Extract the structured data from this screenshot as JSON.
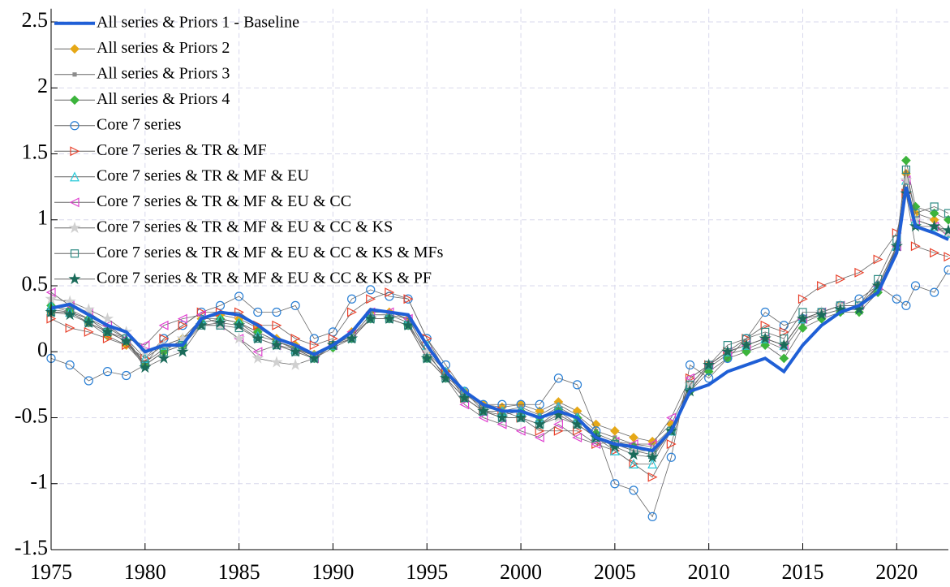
{
  "chart_data": {
    "type": "line",
    "x": [
      1975,
      1976,
      1977,
      1978,
      1979,
      1980,
      1981,
      1982,
      1983,
      1984,
      1985,
      1986,
      1987,
      1988,
      1989,
      1990,
      1991,
      1992,
      1993,
      1994,
      1995,
      1996,
      1997,
      1998,
      1999,
      2000,
      2001,
      2002,
      2003,
      2004,
      2005,
      2006,
      2007,
      2008,
      2009,
      2010,
      2011,
      2012,
      2013,
      2014,
      2015,
      2016,
      2017,
      2018,
      2019,
      2020,
      2020.5,
      2021,
      2022,
      2022.75
    ],
    "xlim": [
      1975,
      2022.75
    ],
    "xticks": [
      1975,
      1980,
      1985,
      1990,
      1995,
      2000,
      2005,
      2010,
      2015,
      2020
    ],
    "ylim": [
      -1.5,
      2.6
    ],
    "yticks": [
      -1.5,
      -1,
      -0.5,
      0,
      0.5,
      1,
      1.5,
      2,
      2.5
    ],
    "grid": true,
    "legend": "upper-left",
    "series": [
      {
        "name": "All series & Priors 1 - Baseline",
        "color": "#1f5fd6",
        "marker": "none",
        "values": [
          0.33,
          0.36,
          0.28,
          0.2,
          0.15,
          0.0,
          0.05,
          0.05,
          0.25,
          0.3,
          0.28,
          0.2,
          0.1,
          0.05,
          -0.02,
          0.05,
          0.15,
          0.32,
          0.3,
          0.28,
          0.05,
          -0.15,
          -0.3,
          -0.4,
          -0.45,
          -0.45,
          -0.5,
          -0.45,
          -0.5,
          -0.65,
          -0.7,
          -0.72,
          -0.75,
          -0.6,
          -0.3,
          -0.25,
          -0.15,
          -0.1,
          -0.05,
          -0.15,
          0.05,
          0.2,
          0.3,
          0.35,
          0.45,
          0.75,
          1.25,
          0.95,
          0.9,
          0.85
        ]
      },
      {
        "name": "All series & Priors 2",
        "color": "#e6a817",
        "marker": "diamond",
        "values": [
          0.3,
          0.3,
          0.22,
          0.12,
          0.05,
          -0.1,
          0.0,
          0.1,
          0.25,
          0.28,
          0.25,
          0.18,
          0.1,
          0.05,
          -0.02,
          0.05,
          0.15,
          0.3,
          0.3,
          0.25,
          0.0,
          -0.15,
          -0.3,
          -0.4,
          -0.42,
          -0.4,
          -0.45,
          -0.38,
          -0.45,
          -0.55,
          -0.6,
          -0.65,
          -0.68,
          -0.55,
          -0.25,
          -0.1,
          0.0,
          0.05,
          0.1,
          0.05,
          0.25,
          0.3,
          0.35,
          0.35,
          0.5,
          0.8,
          1.35,
          1.05,
          1.0,
          0.9
        ]
      },
      {
        "name": "All series & Priors 3",
        "color": "#8c8c8c",
        "marker": "point",
        "values": [
          0.32,
          0.3,
          0.25,
          0.15,
          0.08,
          -0.08,
          0.02,
          0.08,
          0.22,
          0.25,
          0.22,
          0.15,
          0.08,
          0.03,
          -0.03,
          0.05,
          0.12,
          0.28,
          0.28,
          0.22,
          -0.02,
          -0.18,
          -0.32,
          -0.42,
          -0.45,
          -0.42,
          -0.48,
          -0.4,
          -0.48,
          -0.6,
          -0.65,
          -0.7,
          -0.72,
          -0.58,
          -0.28,
          -0.12,
          -0.02,
          0.02,
          0.08,
          0.02,
          0.22,
          0.28,
          0.32,
          0.33,
          0.48,
          0.78,
          1.3,
          1.0,
          0.95,
          0.88
        ]
      },
      {
        "name": "All series & Priors 4",
        "color": "#3cb43c",
        "marker": "diamond",
        "values": [
          0.35,
          0.32,
          0.25,
          0.15,
          0.08,
          -0.1,
          0.0,
          0.05,
          0.22,
          0.25,
          0.22,
          0.15,
          0.08,
          0.02,
          -0.05,
          0.03,
          0.1,
          0.25,
          0.25,
          0.2,
          -0.05,
          -0.2,
          -0.35,
          -0.45,
          -0.48,
          -0.45,
          -0.5,
          -0.45,
          -0.5,
          -0.62,
          -0.68,
          -0.72,
          -0.75,
          -0.6,
          -0.3,
          -0.15,
          -0.05,
          0.0,
          0.05,
          -0.05,
          0.18,
          0.25,
          0.3,
          0.3,
          0.45,
          0.8,
          1.45,
          1.1,
          1.05,
          1.0
        ]
      },
      {
        "name": "Core 7 series",
        "color": "#2a7fd4",
        "marker": "circle",
        "values": [
          -0.05,
          -0.1,
          -0.22,
          -0.15,
          -0.18,
          -0.1,
          0.1,
          0.2,
          0.3,
          0.35,
          0.42,
          0.3,
          0.3,
          0.35,
          0.1,
          0.15,
          0.4,
          0.47,
          0.42,
          0.4,
          0.1,
          -0.1,
          -0.3,
          -0.4,
          -0.4,
          -0.4,
          -0.4,
          -0.2,
          -0.25,
          -0.6,
          -1.0,
          -1.05,
          -1.25,
          -0.8,
          -0.1,
          -0.2,
          -0.05,
          0.1,
          0.3,
          0.2,
          0.25,
          0.3,
          0.35,
          0.4,
          0.5,
          0.4,
          0.35,
          0.5,
          0.45,
          0.62
        ]
      },
      {
        "name": "Core 7 series & TR & MF",
        "color": "#e8402a",
        "marker": "triangle-right",
        "values": [
          0.25,
          0.18,
          0.15,
          0.1,
          0.05,
          -0.05,
          0.1,
          0.2,
          0.3,
          0.3,
          0.3,
          0.2,
          0.2,
          0.1,
          0.05,
          0.1,
          0.3,
          0.4,
          0.45,
          0.4,
          0.1,
          -0.15,
          -0.35,
          -0.45,
          -0.45,
          -0.5,
          -0.6,
          -0.6,
          -0.6,
          -0.7,
          -0.75,
          -0.85,
          -0.95,
          -0.7,
          -0.2,
          -0.1,
          0.0,
          0.1,
          0.2,
          0.15,
          0.4,
          0.5,
          0.55,
          0.6,
          0.7,
          0.9,
          1.2,
          0.8,
          0.75,
          0.72
        ]
      },
      {
        "name": "Core 7 series & TR & MF & EU",
        "color": "#22c8d8",
        "marker": "triangle-up",
        "values": [
          0.35,
          0.3,
          0.25,
          0.18,
          0.1,
          -0.05,
          0.05,
          0.1,
          0.25,
          0.25,
          0.22,
          0.12,
          0.08,
          0.02,
          -0.03,
          0.05,
          0.12,
          0.28,
          0.28,
          0.25,
          0.05,
          -0.15,
          -0.3,
          -0.45,
          -0.45,
          -0.45,
          -0.5,
          -0.42,
          -0.5,
          -0.65,
          -0.75,
          -0.85,
          -0.85,
          -0.6,
          -0.25,
          -0.1,
          0.0,
          0.05,
          0.1,
          0.05,
          0.25,
          0.3,
          0.35,
          0.35,
          0.5,
          0.8,
          1.3,
          1.0,
          0.95,
          0.9
        ]
      },
      {
        "name": "Core 7 series & TR & MF & EU & CC",
        "color": "#e040d0",
        "marker": "triangle-left",
        "values": [
          0.45,
          0.35,
          0.3,
          0.2,
          0.1,
          0.05,
          0.2,
          0.25,
          0.28,
          0.2,
          0.1,
          0.0,
          0.05,
          0.02,
          -0.05,
          0.05,
          0.15,
          0.3,
          0.3,
          0.25,
          0.0,
          -0.2,
          -0.4,
          -0.5,
          -0.55,
          -0.6,
          -0.65,
          -0.55,
          -0.65,
          -0.7,
          -0.68,
          -0.7,
          -0.7,
          -0.5,
          -0.2,
          -0.1,
          0.0,
          0.05,
          0.1,
          0.05,
          0.25,
          0.3,
          0.35,
          0.35,
          0.5,
          0.8,
          1.3,
          1.0,
          0.95,
          0.9
        ]
      },
      {
        "name": "Core 7 series & TR & MF & EU & CC & KS",
        "color": "#d0d0d0",
        "marker": "star",
        "values": [
          0.4,
          0.38,
          0.32,
          0.25,
          0.15,
          0.0,
          0.05,
          0.1,
          0.2,
          0.2,
          0.1,
          -0.05,
          -0.08,
          -0.1,
          -0.05,
          0.05,
          0.12,
          0.25,
          0.25,
          0.2,
          0.0,
          -0.2,
          -0.35,
          -0.45,
          -0.5,
          -0.5,
          -0.55,
          -0.5,
          -0.55,
          -0.65,
          -0.7,
          -0.75,
          -0.75,
          -0.6,
          -0.25,
          -0.1,
          0.0,
          0.05,
          0.1,
          0.05,
          0.25,
          0.3,
          0.35,
          0.35,
          0.5,
          0.8,
          1.3,
          1.0,
          0.95,
          0.9
        ]
      },
      {
        "name": "Core 7 series & TR & MF & EU & CC & KS & MFs",
        "color": "#2e8b84",
        "marker": "square",
        "values": [
          0.3,
          0.3,
          0.22,
          0.15,
          0.1,
          -0.1,
          0.0,
          0.05,
          0.2,
          0.2,
          0.18,
          0.1,
          0.05,
          0.0,
          -0.05,
          0.05,
          0.1,
          0.25,
          0.25,
          0.2,
          -0.05,
          -0.2,
          -0.35,
          -0.45,
          -0.5,
          -0.5,
          -0.55,
          -0.45,
          -0.55,
          -0.65,
          -0.7,
          -0.75,
          -0.78,
          -0.6,
          -0.25,
          -0.1,
          0.05,
          0.1,
          0.15,
          0.1,
          0.3,
          0.3,
          0.35,
          0.35,
          0.55,
          0.85,
          1.38,
          1.05,
          1.1,
          1.05
        ]
      },
      {
        "name": "Core 7 series & TR & MF & EU & CC & KS & PF",
        "color": "#1a6b5a",
        "marker": "star",
        "values": [
          0.3,
          0.28,
          0.22,
          0.15,
          0.08,
          -0.12,
          -0.05,
          0.0,
          0.2,
          0.22,
          0.2,
          0.1,
          0.05,
          0.0,
          -0.05,
          0.05,
          0.1,
          0.25,
          0.25,
          0.2,
          -0.05,
          -0.2,
          -0.35,
          -0.45,
          -0.5,
          -0.5,
          -0.55,
          -0.48,
          -0.55,
          -0.65,
          -0.72,
          -0.78,
          -0.8,
          -0.6,
          -0.3,
          -0.1,
          0.0,
          0.05,
          0.1,
          0.05,
          0.25,
          0.28,
          0.32,
          0.32,
          0.5,
          0.8,
          1.2,
          0.95,
          0.95,
          0.92
        ]
      }
    ]
  }
}
